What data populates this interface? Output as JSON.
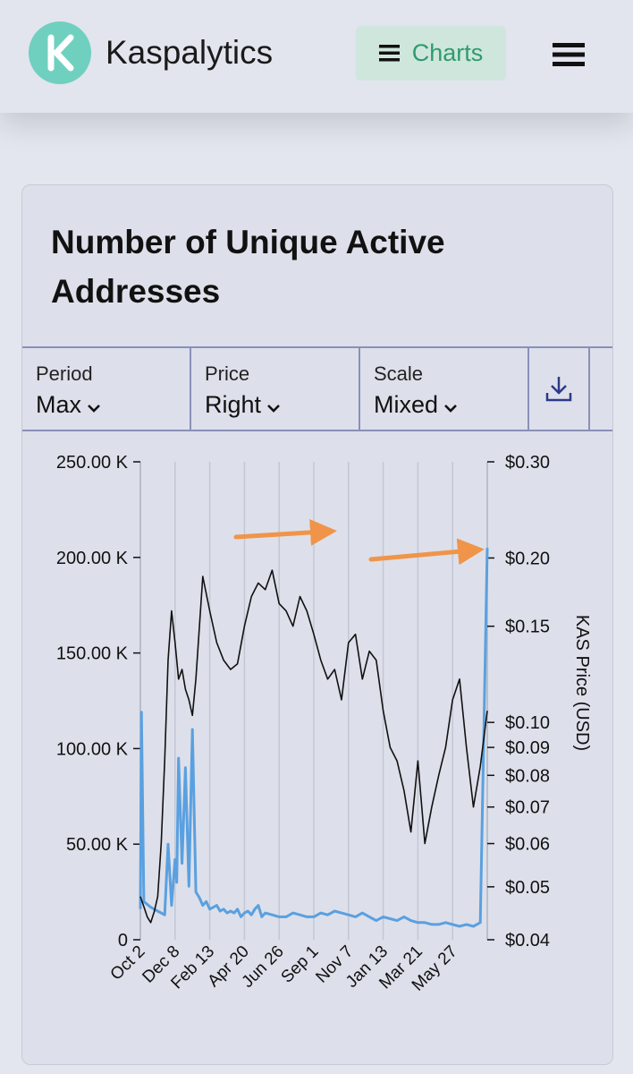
{
  "header": {
    "brand": "Kaspalytics",
    "charts_label": "Charts"
  },
  "card": {
    "title": "Number of Unique Active Addresses",
    "controls": [
      {
        "label": "Period",
        "value": "Max"
      },
      {
        "label": "Price",
        "value": "Right"
      },
      {
        "label": "Scale",
        "value": "Mixed"
      }
    ]
  },
  "colors": {
    "accent": "#2e9c6c",
    "logo": "#6fd0bf",
    "addresses_line": "#5aa0e0",
    "price_line": "#111111",
    "annotation_arrow": "#f0944a"
  },
  "chart_data": {
    "type": "line",
    "title": "Number of Unique Active Addresses",
    "x_tick_labels": [
      "Oct 2",
      "Dec 8",
      "Feb 13",
      "Apr 20",
      "Jun 26",
      "Sep 1",
      "Nov 7",
      "Jan 13",
      "Mar 21",
      "May 27"
    ],
    "left_axis": {
      "ylim": [
        0,
        250000
      ],
      "ticks": [
        0,
        50000,
        100000,
        150000,
        200000,
        250000
      ],
      "tick_labels": [
        "0",
        "50.00 K",
        "100.00 K",
        "150.00 K",
        "200.00 K",
        "250.00 K"
      ]
    },
    "right_axis": {
      "label": "KAS Price (USD)",
      "scale": "log",
      "ylim": [
        0.04,
        0.3
      ],
      "ticks": [
        0.04,
        0.05,
        0.06,
        0.07,
        0.08,
        0.09,
        0.1,
        0.15,
        0.2,
        0.3
      ],
      "tick_labels": [
        "$0.04",
        "$0.05",
        "$0.06",
        "$0.07",
        "$0.08",
        "$0.09",
        "$0.10",
        "$0.15",
        "$0.20",
        "$0.30"
      ]
    },
    "series": [
      {
        "name": "Unique Active Addresses",
        "axis": "left",
        "color": "#5aa0e0",
        "x": [
          0,
          0.3,
          1,
          3,
          5,
          7,
          8,
          9,
          10,
          10.5,
          11,
          12,
          13,
          14,
          15,
          16,
          17,
          18,
          19,
          20,
          22,
          23,
          24,
          25,
          26,
          27,
          28,
          29,
          30,
          31,
          32,
          33,
          34,
          35,
          36,
          38,
          40,
          42,
          44,
          46,
          48,
          50,
          52,
          54,
          56,
          58,
          60,
          62,
          64,
          66,
          68,
          70,
          72,
          74,
          76,
          78,
          80,
          82,
          84,
          86,
          88,
          90,
          92,
          94,
          96,
          98,
          100
        ],
        "values": [
          16000,
          119000,
          20000,
          17000,
          15000,
          13000,
          50000,
          18000,
          42000,
          30000,
          95000,
          40000,
          90000,
          28000,
          110000,
          25000,
          22000,
          18000,
          20000,
          16000,
          18000,
          15000,
          16000,
          14000,
          15000,
          14000,
          16000,
          12000,
          14000,
          15000,
          13000,
          16000,
          18000,
          12000,
          14000,
          13000,
          12000,
          12000,
          14000,
          13000,
          12000,
          12000,
          14000,
          13000,
          15000,
          14000,
          13000,
          12000,
          14000,
          12000,
          10000,
          12000,
          11000,
          10000,
          12000,
          10000,
          9000,
          9000,
          8000,
          8000,
          9000,
          8000,
          7000,
          8000,
          7000,
          9000,
          205000
        ]
      },
      {
        "name": "KAS Price (USD)",
        "axis": "right",
        "color": "#111111",
        "x": [
          0,
          1,
          2,
          3,
          4,
          5,
          6,
          7,
          8,
          9,
          10,
          11,
          12,
          13,
          14,
          15,
          16,
          18,
          20,
          22,
          24,
          26,
          28,
          30,
          32,
          34,
          36,
          38,
          40,
          42,
          44,
          46,
          48,
          50,
          52,
          54,
          56,
          58,
          60,
          62,
          64,
          66,
          68,
          70,
          72,
          74,
          76,
          78,
          80,
          82,
          84,
          86,
          88,
          90,
          92,
          94,
          96,
          98,
          100
        ],
        "values": [
          0.048,
          0.046,
          0.044,
          0.043,
          0.045,
          0.048,
          0.06,
          0.085,
          0.13,
          0.16,
          0.14,
          0.12,
          0.125,
          0.115,
          0.11,
          0.103,
          0.12,
          0.185,
          0.16,
          0.14,
          0.13,
          0.125,
          0.128,
          0.15,
          0.17,
          0.18,
          0.175,
          0.19,
          0.165,
          0.16,
          0.15,
          0.17,
          0.16,
          0.145,
          0.13,
          0.12,
          0.125,
          0.11,
          0.14,
          0.145,
          0.12,
          0.135,
          0.13,
          0.105,
          0.09,
          0.085,
          0.075,
          0.063,
          0.085,
          0.06,
          0.07,
          0.08,
          0.09,
          0.11,
          0.12,
          0.09,
          0.07,
          0.083,
          0.105
        ]
      }
    ]
  }
}
